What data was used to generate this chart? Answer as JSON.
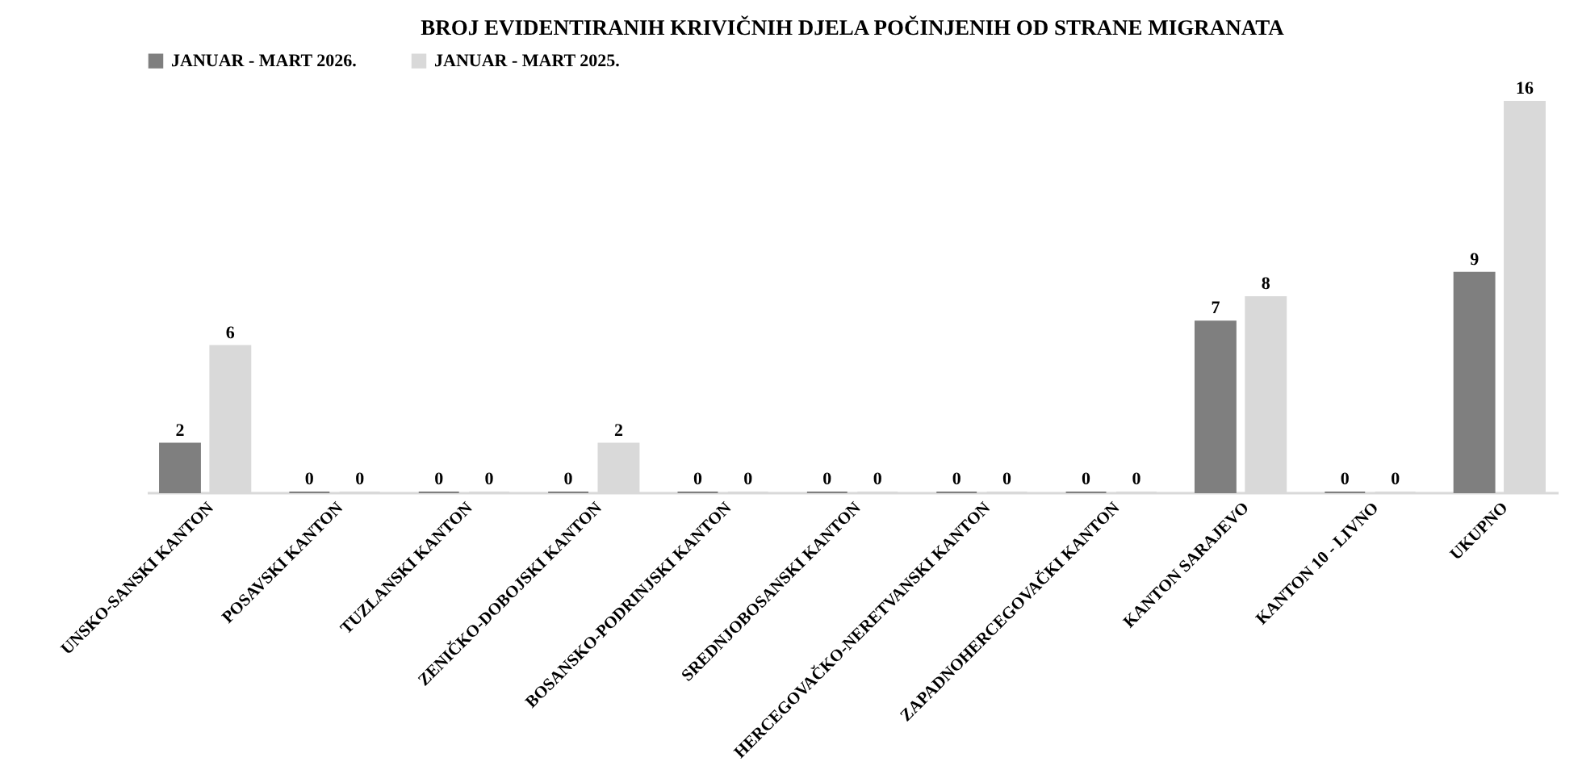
{
  "chart_data": {
    "type": "bar",
    "title": "BROJ EVIDENTIRANIH KRIVIČNIH DJELA POČINJENIH OD STRANE MIGRANATA",
    "categories": [
      "UNSKO-SANSKI KANTON",
      "POSAVSKI KANTON",
      "TUZLANSKI KANTON",
      "ZENIČKO-DOBOJSKI KANTON",
      "BOSANSKO-PODRINJSKI KANTON",
      "SREDNJOBOSANSKI KANTON",
      "HERCEGOVAČKO-NERETVANSKI KANTON",
      "ZAPADNOHERCEGOVAČKI KANTON",
      "KANTON SARAJEVO",
      "KANTON 10 - LIVNO",
      "UKUPNO"
    ],
    "series": [
      {
        "name": "JANUAR - MART 2026.",
        "color": "#7f7f7f",
        "values": [
          2,
          0,
          0,
          0,
          0,
          0,
          0,
          0,
          7,
          0,
          9
        ]
      },
      {
        "name": "JANUAR - MART 2025.",
        "color": "#d9d9d9",
        "values": [
          6,
          0,
          0,
          2,
          0,
          0,
          0,
          0,
          8,
          0,
          16
        ]
      }
    ],
    "data_labels": true,
    "legend": "top",
    "grid": false
  }
}
